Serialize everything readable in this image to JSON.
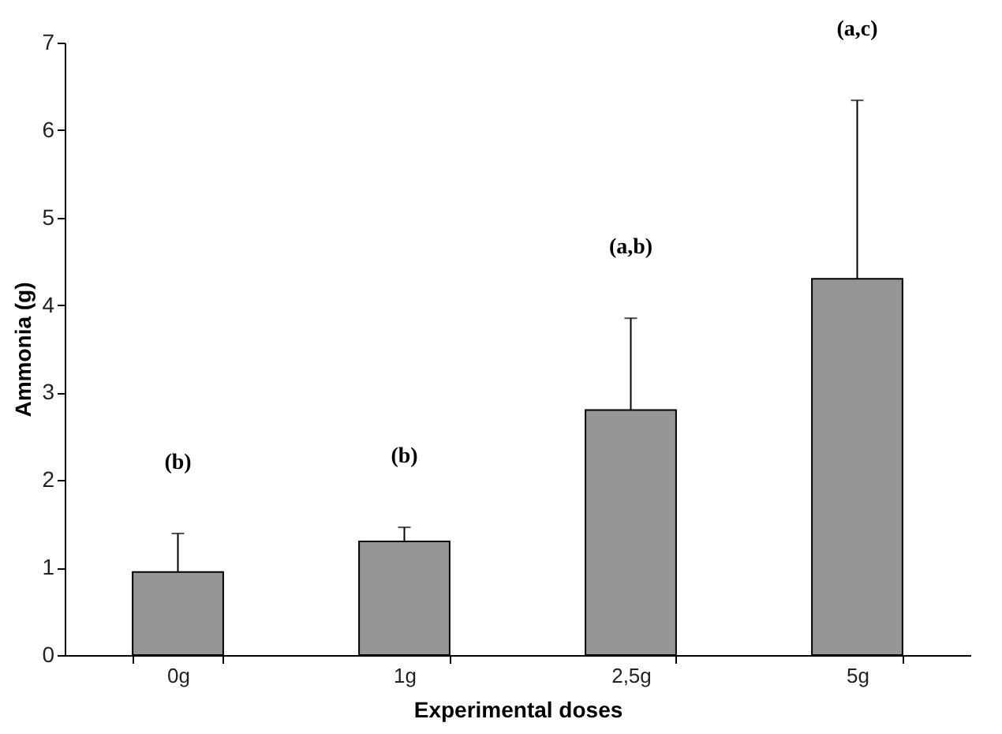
{
  "chart_data": {
    "type": "bar",
    "xlabel": "Experimental doses",
    "ylabel": "Ammonia (g)",
    "categories": [
      "0g",
      "1g",
      "2,5g",
      "5g"
    ],
    "values": [
      0.95,
      1.3,
      2.8,
      4.3
    ],
    "errors": [
      [
        0.95,
        1.39
      ],
      [
        1.3,
        1.46
      ],
      [
        2.8,
        3.85
      ],
      [
        4.3,
        6.34
      ]
    ],
    "color": "#969696",
    "ylim": [
      0,
      7
    ],
    "yticks": [
      0,
      1,
      2,
      3,
      4,
      5,
      6,
      7
    ],
    "grid": false,
    "annotations": [
      "(b)",
      "(b)",
      "(a,b)",
      "(a,c)"
    ]
  }
}
